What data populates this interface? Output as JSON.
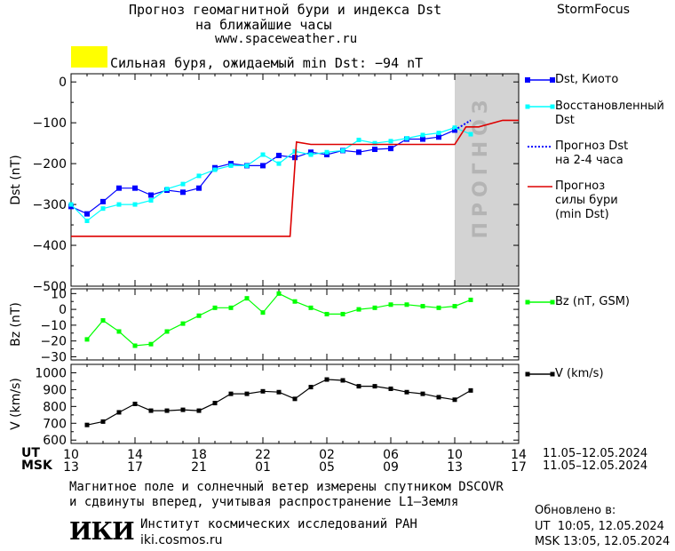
{
  "header": {
    "title_line1": "Прогноз геомагнитной бури и индекса Dst",
    "title_line2": "на ближайшие часы",
    "url": "www.spaceweather.ru",
    "brand": "StormFocus"
  },
  "alert": {
    "text": "Сильная буря, ожидаемый min Dst: −94 nT",
    "color": "#ffff00"
  },
  "colors": {
    "dst_kyoto": "#0000ff",
    "dst_restored": "#00ffff",
    "dst_forecast": "#0000ff",
    "storm_forecast": "#dd0000",
    "bz": "#00ff00",
    "v": "#000000",
    "forecast_zone": "#d3d3d3"
  },
  "forecast_zone_label": "прогноз",
  "legend": {
    "dst_kyoto": "Dst, Киото",
    "dst_restored_1": "Восстановленный",
    "dst_restored_2": "Dst",
    "dst_forecast_1": "Прогноз Dst",
    "dst_forecast_2": "на 2-4 часа",
    "storm_1": "Прогноз",
    "storm_2": "силы бури",
    "storm_3": "(min Dst)",
    "bz": "Bz (nT, GSM)",
    "v": "V (km/s)"
  },
  "time_axis": {
    "ut_label": "UT",
    "msk_label": "MSK",
    "ut_ticks": [
      "10",
      "14",
      "18",
      "22",
      "02",
      "06",
      "10",
      "14"
    ],
    "msk_ticks": [
      "13",
      "17",
      "21",
      "01",
      "05",
      "09",
      "13",
      "17"
    ],
    "date_range_ut": "11.05–12.05.2024",
    "date_range_msk": "11.05–12.05.2024"
  },
  "footer": {
    "note_line1": "Магнитное поле и солнечный ветер измерены спутником DSCOVR",
    "note_line2": "и сдвинуты вперед, учитывая распространение L1–Земля",
    "logo": "ИКИ",
    "institute": "Институт космических исследований РАН",
    "site": "iki.cosmos.ru",
    "updated_label": "Обновлено в:",
    "updated_ut": "UT  10:05, 12.05.2024",
    "updated_msk": "MSK 13:05, 12.05.2024"
  },
  "chart_data": [
    {
      "type": "line",
      "panel": "dst",
      "ylabel": "Dst (nT)",
      "x_unit": "hours since 11.05 10:00 UT",
      "xlim": [
        0,
        28
      ],
      "ylim": [
        -500,
        20
      ],
      "yticks": [
        0,
        -100,
        -200,
        -300,
        -400,
        -500
      ],
      "ytick_labels": [
        "0",
        "−100",
        "−200",
        "−300",
        "−400",
        "−500"
      ],
      "forecast_zone": [
        24,
        28
      ],
      "series": [
        {
          "name": "Dst, Киото",
          "x": [
            0,
            1,
            2,
            3,
            4,
            5,
            6,
            7,
            8,
            9,
            10,
            11,
            12,
            13,
            14,
            15,
            16,
            17,
            18,
            19,
            20,
            21,
            22,
            23,
            24
          ],
          "y": [
            -305,
            -323,
            -293,
            -260,
            -260,
            -277,
            -265,
            -270,
            -260,
            -210,
            -200,
            -205,
            -205,
            -180,
            -185,
            -172,
            -178,
            -168,
            -172,
            -165,
            -163,
            -140,
            -140,
            -135,
            -118
          ]
        },
        {
          "name": "Восстановленный Dst",
          "x": [
            0,
            1,
            2,
            3,
            4,
            5,
            6,
            7,
            8,
            9,
            10,
            11,
            12,
            13,
            14,
            15,
            16,
            17,
            18,
            19,
            20,
            21,
            22,
            23,
            24,
            25
          ],
          "y": [
            -300,
            -340,
            -310,
            -300,
            -300,
            -290,
            -262,
            -250,
            -230,
            -215,
            -205,
            -205,
            -178,
            -200,
            -170,
            -178,
            -172,
            -168,
            -142,
            -150,
            -145,
            -138,
            -130,
            -125,
            -112,
            -128
          ]
        },
        {
          "name": "Прогноз Dst на 2-4 часа",
          "x": [
            24,
            25
          ],
          "y": [
            -118,
            -94
          ]
        },
        {
          "name": "Прогноз силы бури (min Dst)",
          "x": [
            0,
            13.7,
            14.1,
            15,
            24,
            24.7,
            25.5,
            27,
            28
          ],
          "y": [
            -378,
            -378,
            -147,
            -153,
            -153,
            -110,
            -110,
            -94,
            -94
          ]
        }
      ]
    },
    {
      "type": "line",
      "panel": "bz",
      "ylabel": "Bz (nT)",
      "xlim": [
        0,
        28
      ],
      "ylim": [
        -32,
        13
      ],
      "yticks": [
        10,
        0,
        -10,
        -20,
        -30
      ],
      "ytick_labels": [
        "10",
        "0",
        "−10",
        "−20",
        "−30"
      ],
      "series": [
        {
          "name": "Bz (nT, GSM)",
          "x": [
            1,
            2,
            3,
            4,
            5,
            6,
            7,
            8,
            9,
            10,
            11,
            12,
            13,
            14,
            15,
            16,
            17,
            18,
            19,
            20,
            21,
            22,
            23,
            24,
            25
          ],
          "y": [
            -19,
            -7,
            -14,
            -23,
            -22,
            -14,
            -9,
            -4,
            1,
            1,
            7,
            -2,
            10,
            5,
            1,
            -3,
            -3,
            0,
            1,
            3,
            3,
            2,
            1,
            2,
            6
          ]
        }
      ]
    },
    {
      "type": "line",
      "panel": "v",
      "ylabel": "V (km/s)",
      "xlim": [
        0,
        28
      ],
      "ylim": [
        580,
        1050
      ],
      "yticks": [
        1000,
        900,
        800,
        700,
        600
      ],
      "ytick_labels": [
        "1000",
        "900",
        "800",
        "700",
        "600"
      ],
      "series": [
        {
          "name": "V (km/s)",
          "x": [
            1,
            2,
            3,
            4,
            5,
            6,
            7,
            8,
            9,
            10,
            11,
            12,
            13,
            14,
            15,
            16,
            17,
            18,
            19,
            20,
            21,
            22,
            23,
            24,
            25
          ],
          "y": [
            690,
            710,
            765,
            815,
            775,
            775,
            780,
            775,
            820,
            875,
            875,
            890,
            885,
            845,
            915,
            960,
            955,
            920,
            920,
            905,
            885,
            875,
            855,
            840,
            895
          ]
        }
      ]
    }
  ]
}
